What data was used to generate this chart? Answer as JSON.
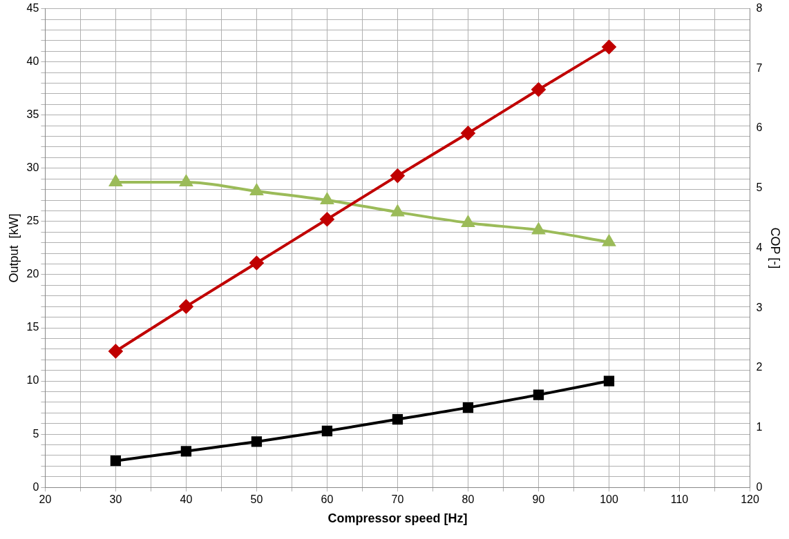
{
  "chart_data": {
    "type": "line",
    "xlabel": "Compressor speed [Hz]",
    "ylabel": "Output  [kW]",
    "y2label": "COP [-]",
    "x": [
      30,
      40,
      50,
      60,
      70,
      80,
      90,
      100
    ],
    "series": [
      {
        "color": "#c00000",
        "marker": "diamond",
        "values": [
          12.8,
          17.0,
          21.1,
          25.2,
          29.3,
          33.3,
          37.4,
          41.4
        ]
      },
      {
        "color": "#000000",
        "marker": "square",
        "values": [
          2.5,
          3.4,
          4.3,
          5.3,
          6.4,
          7.5,
          8.7,
          10.0
        ]
      },
      {
        "color": "#9bbb59",
        "marker": "triangle",
        "axis": "y2",
        "values": [
          5.1,
          5.1,
          4.95,
          4.8,
          4.6,
          4.42,
          4.3,
          4.1
        ]
      }
    ],
    "xlim": [
      20,
      120
    ],
    "xticks": [
      20,
      {
        "value": 25,
        "label": null
      },
      30,
      {
        "value": 35,
        "label": null
      },
      40,
      {
        "value": 45,
        "label": null
      },
      50,
      {
        "value": 55,
        "label": null
      },
      60,
      {
        "value": 65,
        "label": null
      },
      70,
      {
        "value": 75,
        "label": null
      },
      80,
      {
        "value": 85,
        "label": null
      },
      90,
      {
        "value": 95,
        "label": null
      },
      100,
      {
        "value": 105,
        "label": null
      },
      110,
      {
        "value": 115,
        "label": null
      },
      120
    ],
    "ylim": [
      0,
      45
    ],
    "yticks": [
      0,
      {
        "value": 1,
        "label": null
      },
      {
        "value": 2,
        "label": null
      },
      {
        "value": 3,
        "label": null
      },
      {
        "value": 4,
        "label": null
      },
      5,
      {
        "value": 6,
        "label": null
      },
      {
        "value": 7,
        "label": null
      },
      {
        "value": 8,
        "label": null
      },
      {
        "value": 9,
        "label": null
      },
      10,
      {
        "value": 11,
        "label": null
      },
      {
        "value": 12,
        "label": null
      },
      {
        "value": 13,
        "label": null
      },
      {
        "value": 14,
        "label": null
      },
      15,
      {
        "value": 16,
        "label": null
      },
      {
        "value": 17,
        "label": null
      },
      {
        "value": 18,
        "label": null
      },
      {
        "value": 19,
        "label": null
      },
      20,
      {
        "value": 21,
        "label": null
      },
      {
        "value": 22,
        "label": null
      },
      {
        "value": 23,
        "label": null
      },
      {
        "value": 24,
        "label": null
      },
      25,
      {
        "value": 26,
        "label": null
      },
      {
        "value": 27,
        "label": null
      },
      {
        "value": 28,
        "label": null
      },
      {
        "value": 29,
        "label": null
      },
      30,
      {
        "value": 31,
        "label": null
      },
      {
        "value": 32,
        "label": null
      },
      {
        "value": 33,
        "label": null
      },
      {
        "value": 34,
        "label": null
      },
      35,
      {
        "value": 36,
        "label": null
      },
      {
        "value": 37,
        "label": null
      },
      {
        "value": 38,
        "label": null
      },
      {
        "value": 39,
        "label": null
      },
      40,
      {
        "value": 41,
        "label": null
      },
      {
        "value": 42,
        "label": null
      },
      {
        "value": 43,
        "label": null
      },
      {
        "value": 44,
        "label": null
      },
      45
    ],
    "y2lim": [
      0,
      8
    ],
    "y2ticks": [
      0,
      1,
      2,
      3,
      4,
      5,
      6,
      7,
      8
    ],
    "grid": true,
    "legend": false
  }
}
